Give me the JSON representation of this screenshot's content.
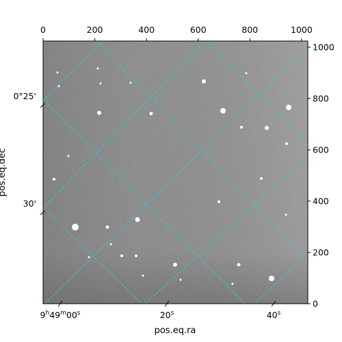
{
  "chart_data": {
    "type": "image",
    "xlabel": "pos.eq.ra",
    "ylabel": "pos.eq.dec",
    "pixel_axes": {
      "top": {
        "range": [
          0,
          1024
        ],
        "ticks": [
          0,
          200,
          400,
          600,
          800,
          1000
        ]
      },
      "right": {
        "range": [
          0,
          1024
        ],
        "ticks": [
          0,
          200,
          400,
          600,
          800,
          1000
        ]
      }
    },
    "world_axes": {
      "bottom_ticks": [
        {
          "pre": "9",
          "sup1": "h",
          "mid": "49",
          "sup2": "m",
          "num": "00",
          "sup3": "s"
        },
        {
          "pre": "",
          "sup1": "",
          "mid": "",
          "sup2": "",
          "num": "20",
          "sup3": "s"
        },
        {
          "pre": "",
          "sup1": "",
          "mid": "",
          "sup2": "",
          "num": "40",
          "sup3": "s"
        }
      ],
      "left_ticks": [
        "0°25'",
        "30'"
      ]
    },
    "grid": {
      "color": "#22d3d3",
      "style": "dashed"
    },
    "colormap": "gray"
  }
}
